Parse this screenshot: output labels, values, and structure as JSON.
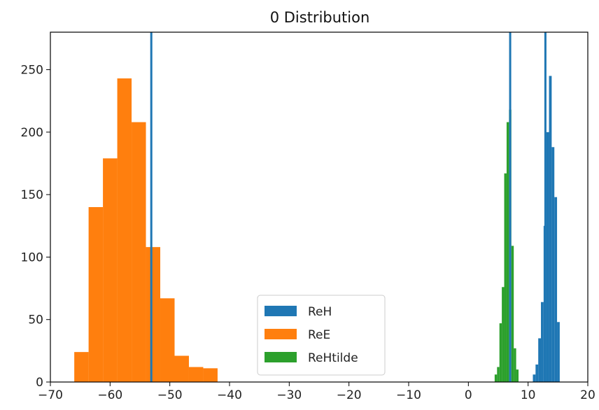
{
  "chart_data": {
    "type": "histogram",
    "title": "0 Distribution",
    "xlabel": "",
    "ylabel": "",
    "xlim": [
      -70,
      20
    ],
    "ylim": [
      0,
      280
    ],
    "x_ticks": [
      -70,
      -60,
      -50,
      -40,
      -30,
      -20,
      -10,
      0,
      10,
      20
    ],
    "y_ticks": [
      0,
      50,
      100,
      150,
      200,
      250
    ],
    "x_tick_labels": [
      "−70",
      "−60",
      "−50",
      "−40",
      "−30",
      "−20",
      "−10",
      "0",
      "10",
      "20"
    ],
    "y_tick_labels": [
      "0",
      "50",
      "100",
      "150",
      "200",
      "250"
    ],
    "grid": false,
    "legend_position": "lower-center",
    "series": [
      {
        "name": "ReH",
        "color": "#1f77b4",
        "bins": [
          {
            "x0": 10.8,
            "x1": 11.25,
            "count": 6
          },
          {
            "x0": 11.25,
            "x1": 11.7,
            "count": 14
          },
          {
            "x0": 11.7,
            "x1": 12.15,
            "count": 35
          },
          {
            "x0": 12.15,
            "x1": 12.6,
            "count": 64
          },
          {
            "x0": 12.6,
            "x1": 13.05,
            "count": 125
          },
          {
            "x0": 13.05,
            "x1": 13.5,
            "count": 200
          },
          {
            "x0": 13.5,
            "x1": 13.95,
            "count": 245
          },
          {
            "x0": 13.95,
            "x1": 14.4,
            "count": 188
          },
          {
            "x0": 14.4,
            "x1": 14.85,
            "count": 148
          },
          {
            "x0": 14.85,
            "x1": 15.3,
            "count": 48
          }
        ],
        "vline": 12.9
      },
      {
        "name": "ReE",
        "color": "#ff7f0e",
        "bins": [
          {
            "x0": -66.0,
            "x1": -63.6,
            "count": 24
          },
          {
            "x0": -63.6,
            "x1": -61.2,
            "count": 140
          },
          {
            "x0": -61.2,
            "x1": -58.8,
            "count": 179
          },
          {
            "x0": -58.8,
            "x1": -56.4,
            "count": 243
          },
          {
            "x0": -56.4,
            "x1": -54.0,
            "count": 208
          },
          {
            "x0": -54.0,
            "x1": -51.6,
            "count": 108
          },
          {
            "x0": -51.6,
            "x1": -49.2,
            "count": 67
          },
          {
            "x0": -49.2,
            "x1": -46.8,
            "count": 21
          },
          {
            "x0": -46.8,
            "x1": -44.4,
            "count": 12
          },
          {
            "x0": -44.4,
            "x1": -42.0,
            "count": 11
          }
        ],
        "vline": -53.1
      },
      {
        "name": "ReHtilde",
        "color": "#2ca02c",
        "bins": [
          {
            "x0": 4.4,
            "x1": 4.8,
            "count": 6
          },
          {
            "x0": 4.8,
            "x1": 5.2,
            "count": 12
          },
          {
            "x0": 5.2,
            "x1": 5.6,
            "count": 47
          },
          {
            "x0": 5.6,
            "x1": 6.0,
            "count": 76
          },
          {
            "x0": 6.0,
            "x1": 6.4,
            "count": 167
          },
          {
            "x0": 6.4,
            "x1": 6.8,
            "count": 208
          },
          {
            "x0": 6.8,
            "x1": 7.2,
            "count": 218
          },
          {
            "x0": 7.2,
            "x1": 7.6,
            "count": 109
          },
          {
            "x0": 7.6,
            "x1": 8.0,
            "count": 27
          },
          {
            "x0": 8.0,
            "x1": 8.4,
            "count": 10
          }
        ],
        "vline": 7.0
      }
    ]
  }
}
